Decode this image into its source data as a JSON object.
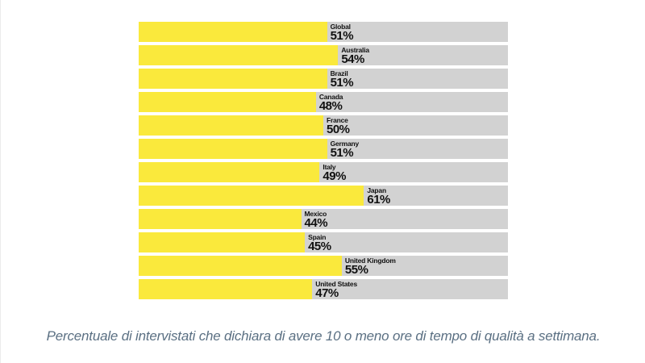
{
  "chart_data": {
    "type": "bar",
    "orientation": "horizontal",
    "categories": [
      "Global",
      "Australia",
      "Brazil",
      "Canada",
      "France",
      "Germany",
      "Italy",
      "Japan",
      "Mexico",
      "Spain",
      "United Kingdom",
      "United States"
    ],
    "values": [
      51,
      54,
      51,
      48,
      50,
      51,
      49,
      61,
      44,
      45,
      55,
      47
    ],
    "value_labels": [
      "51%",
      "54%",
      "51%",
      "48%",
      "50%",
      "51%",
      "49%",
      "61%",
      "44%",
      "45%",
      "55%",
      "47%"
    ],
    "title": "",
    "xlabel": "",
    "ylabel": "",
    "xlim": [
      0,
      100
    ],
    "grid": false,
    "legend": false,
    "bar_color": "#fae93c",
    "track_color": "#d2d2d2",
    "label_color": "#111111"
  },
  "caption": {
    "text": "Percentuale di intervistati che dichiara di avere 10 o meno ore di tempo di qualità a settimana.",
    "color": "#5b7083"
  }
}
